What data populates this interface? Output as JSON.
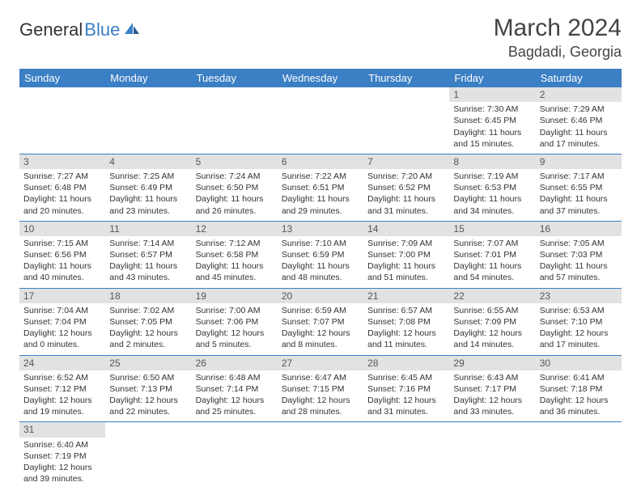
{
  "logo": {
    "text_a": "General",
    "text_b": "Blue"
  },
  "title": "March 2024",
  "location": "Bagdadi, Georgia",
  "colors": {
    "header_bg": "#3b7fc4",
    "header_text": "#ffffff",
    "daynum_bg": "#e2e2e2",
    "border": "#3b7fc4",
    "text": "#333333"
  },
  "weekdays": [
    "Sunday",
    "Monday",
    "Tuesday",
    "Wednesday",
    "Thursday",
    "Friday",
    "Saturday"
  ],
  "weeks": [
    [
      null,
      null,
      null,
      null,
      null,
      {
        "n": "1",
        "sunrise": "7:30 AM",
        "sunset": "6:45 PM",
        "daylight": "11 hours and 15 minutes."
      },
      {
        "n": "2",
        "sunrise": "7:29 AM",
        "sunset": "6:46 PM",
        "daylight": "11 hours and 17 minutes."
      }
    ],
    [
      {
        "n": "3",
        "sunrise": "7:27 AM",
        "sunset": "6:48 PM",
        "daylight": "11 hours and 20 minutes."
      },
      {
        "n": "4",
        "sunrise": "7:25 AM",
        "sunset": "6:49 PM",
        "daylight": "11 hours and 23 minutes."
      },
      {
        "n": "5",
        "sunrise": "7:24 AM",
        "sunset": "6:50 PM",
        "daylight": "11 hours and 26 minutes."
      },
      {
        "n": "6",
        "sunrise": "7:22 AM",
        "sunset": "6:51 PM",
        "daylight": "11 hours and 29 minutes."
      },
      {
        "n": "7",
        "sunrise": "7:20 AM",
        "sunset": "6:52 PM",
        "daylight": "11 hours and 31 minutes."
      },
      {
        "n": "8",
        "sunrise": "7:19 AM",
        "sunset": "6:53 PM",
        "daylight": "11 hours and 34 minutes."
      },
      {
        "n": "9",
        "sunrise": "7:17 AM",
        "sunset": "6:55 PM",
        "daylight": "11 hours and 37 minutes."
      }
    ],
    [
      {
        "n": "10",
        "sunrise": "7:15 AM",
        "sunset": "6:56 PM",
        "daylight": "11 hours and 40 minutes."
      },
      {
        "n": "11",
        "sunrise": "7:14 AM",
        "sunset": "6:57 PM",
        "daylight": "11 hours and 43 minutes."
      },
      {
        "n": "12",
        "sunrise": "7:12 AM",
        "sunset": "6:58 PM",
        "daylight": "11 hours and 45 minutes."
      },
      {
        "n": "13",
        "sunrise": "7:10 AM",
        "sunset": "6:59 PM",
        "daylight": "11 hours and 48 minutes."
      },
      {
        "n": "14",
        "sunrise": "7:09 AM",
        "sunset": "7:00 PM",
        "daylight": "11 hours and 51 minutes."
      },
      {
        "n": "15",
        "sunrise": "7:07 AM",
        "sunset": "7:01 PM",
        "daylight": "11 hours and 54 minutes."
      },
      {
        "n": "16",
        "sunrise": "7:05 AM",
        "sunset": "7:03 PM",
        "daylight": "11 hours and 57 minutes."
      }
    ],
    [
      {
        "n": "17",
        "sunrise": "7:04 AM",
        "sunset": "7:04 PM",
        "daylight": "12 hours and 0 minutes."
      },
      {
        "n": "18",
        "sunrise": "7:02 AM",
        "sunset": "7:05 PM",
        "daylight": "12 hours and 2 minutes."
      },
      {
        "n": "19",
        "sunrise": "7:00 AM",
        "sunset": "7:06 PM",
        "daylight": "12 hours and 5 minutes."
      },
      {
        "n": "20",
        "sunrise": "6:59 AM",
        "sunset": "7:07 PM",
        "daylight": "12 hours and 8 minutes."
      },
      {
        "n": "21",
        "sunrise": "6:57 AM",
        "sunset": "7:08 PM",
        "daylight": "12 hours and 11 minutes."
      },
      {
        "n": "22",
        "sunrise": "6:55 AM",
        "sunset": "7:09 PM",
        "daylight": "12 hours and 14 minutes."
      },
      {
        "n": "23",
        "sunrise": "6:53 AM",
        "sunset": "7:10 PM",
        "daylight": "12 hours and 17 minutes."
      }
    ],
    [
      {
        "n": "24",
        "sunrise": "6:52 AM",
        "sunset": "7:12 PM",
        "daylight": "12 hours and 19 minutes."
      },
      {
        "n": "25",
        "sunrise": "6:50 AM",
        "sunset": "7:13 PM",
        "daylight": "12 hours and 22 minutes."
      },
      {
        "n": "26",
        "sunrise": "6:48 AM",
        "sunset": "7:14 PM",
        "daylight": "12 hours and 25 minutes."
      },
      {
        "n": "27",
        "sunrise": "6:47 AM",
        "sunset": "7:15 PM",
        "daylight": "12 hours and 28 minutes."
      },
      {
        "n": "28",
        "sunrise": "6:45 AM",
        "sunset": "7:16 PM",
        "daylight": "12 hours and 31 minutes."
      },
      {
        "n": "29",
        "sunrise": "6:43 AM",
        "sunset": "7:17 PM",
        "daylight": "12 hours and 33 minutes."
      },
      {
        "n": "30",
        "sunrise": "6:41 AM",
        "sunset": "7:18 PM",
        "daylight": "12 hours and 36 minutes."
      }
    ],
    [
      {
        "n": "31",
        "sunrise": "6:40 AM",
        "sunset": "7:19 PM",
        "daylight": "12 hours and 39 minutes."
      },
      null,
      null,
      null,
      null,
      null,
      null
    ]
  ],
  "labels": {
    "sunrise": "Sunrise: ",
    "sunset": "Sunset: ",
    "daylight": "Daylight: "
  }
}
